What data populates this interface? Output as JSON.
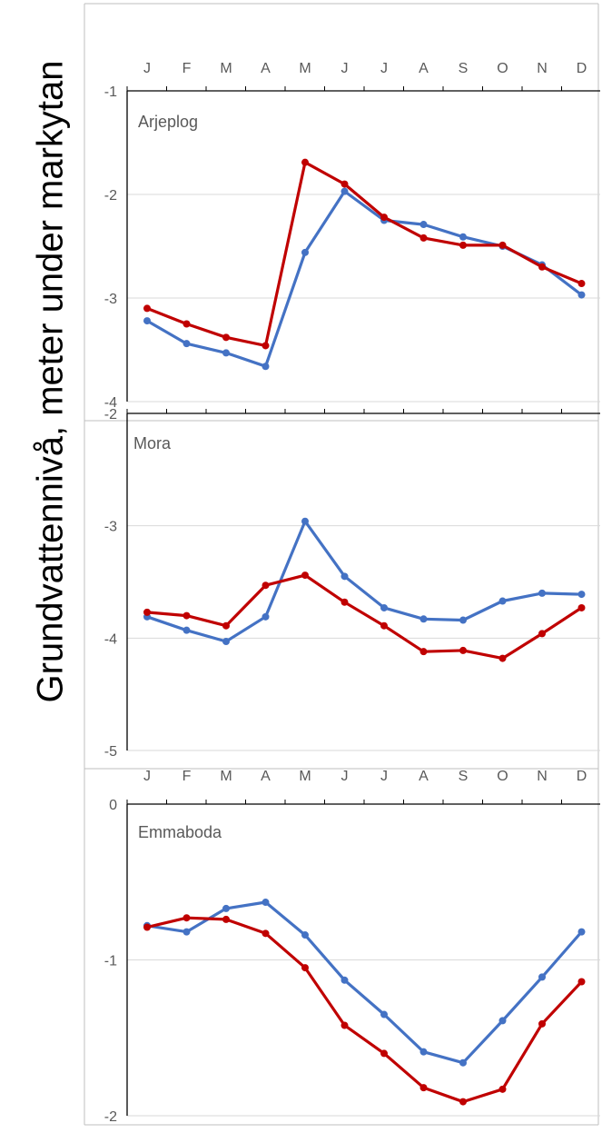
{
  "ylabel": "Grundvattennivå, meter under markytan",
  "colors": {
    "blue": "#4472C4",
    "red": "#C00000",
    "axis": "#000000",
    "grid": "#d9d9d9",
    "text": "#595959"
  },
  "chart_data": [
    {
      "type": "line",
      "title": "Arjeplog",
      "categories": [
        "J",
        "F",
        "M",
        "A",
        "M",
        "J",
        "J",
        "A",
        "S",
        "O",
        "N",
        "D"
      ],
      "ylim": [
        -4,
        -1
      ],
      "yticks": [
        -1,
        -2,
        -3,
        -4
      ],
      "grid": true,
      "series": [
        {
          "color": "#4472C4",
          "values": [
            -3.22,
            -3.44,
            -3.53,
            -3.66,
            -2.56,
            -1.97,
            -2.25,
            -2.29,
            -2.41,
            -2.5,
            -2.68,
            -2.97
          ]
        },
        {
          "color": "#C00000",
          "values": [
            -3.1,
            -3.25,
            -3.38,
            -3.46,
            -1.69,
            -1.9,
            -2.22,
            -2.42,
            -2.49,
            -2.49,
            -2.7,
            -2.86
          ]
        }
      ]
    },
    {
      "type": "line",
      "title": "Mora",
      "categories": [
        "J",
        "F",
        "M",
        "A",
        "M",
        "J",
        "J",
        "A",
        "S",
        "O",
        "N",
        "D"
      ],
      "ylim": [
        -5,
        -2
      ],
      "yticks": [
        -2,
        -3,
        -4,
        -5
      ],
      "grid": true,
      "series": [
        {
          "color": "#4472C4",
          "values": [
            -3.81,
            -3.93,
            -4.03,
            -3.81,
            -2.96,
            -3.45,
            -3.73,
            -3.83,
            -3.84,
            -3.67,
            -3.6,
            -3.61
          ]
        },
        {
          "color": "#C00000",
          "values": [
            -3.77,
            -3.8,
            -3.89,
            -3.53,
            -3.44,
            -3.68,
            -3.89,
            -4.12,
            -4.11,
            -4.18,
            -3.96,
            -3.73
          ]
        }
      ]
    },
    {
      "type": "line",
      "title": "Emmaboda",
      "categories": [
        "J",
        "F",
        "M",
        "A",
        "M",
        "J",
        "J",
        "A",
        "S",
        "O",
        "N",
        "D"
      ],
      "ylim": [
        -2,
        0
      ],
      "yticks": [
        0,
        -1,
        -2
      ],
      "grid": true,
      "series": [
        {
          "color": "#4472C4",
          "values": [
            -0.78,
            -0.82,
            -0.67,
            -0.63,
            -0.84,
            -1.13,
            -1.35,
            -1.59,
            -1.66,
            -1.39,
            -1.11,
            -0.82
          ]
        },
        {
          "color": "#C00000",
          "values": [
            -0.79,
            -0.73,
            -0.74,
            -0.83,
            -1.05,
            -1.42,
            -1.6,
            -1.82,
            -1.91,
            -1.83,
            -1.41,
            -1.14
          ]
        }
      ]
    }
  ]
}
